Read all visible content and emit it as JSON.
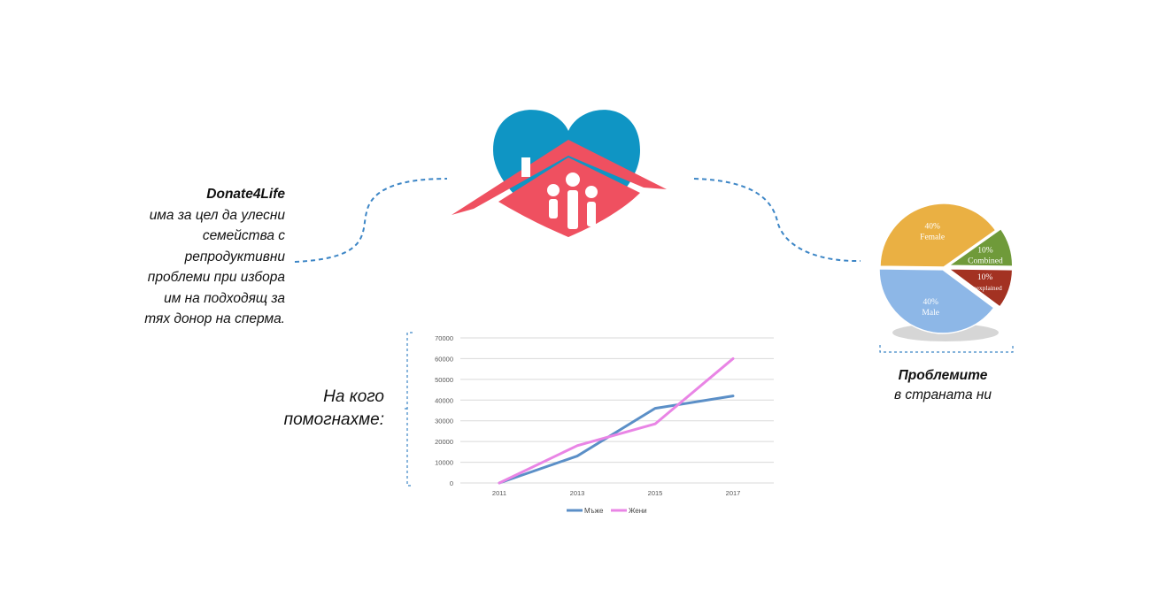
{
  "intro": {
    "brand": "Donate4Life",
    "lines": [
      "има за цел да улесни",
      "семейства с",
      "репродуктивни",
      "проблеми при избора",
      "им на подходящ за",
      "тях донор на сперма."
    ]
  },
  "helped": {
    "lines": [
      "На кого",
      "помогнахме:"
    ]
  },
  "problems": {
    "title": "Проблемите",
    "subtitle": "в страната ни"
  },
  "colors": {
    "heart_blue": "#0f95c4",
    "house_red": "#ef5060",
    "connector": "#3d86c6",
    "men_line": "#5b8fc7",
    "women_line": "#e985e5",
    "pie_female": "#eab043",
    "pie_combined": "#6f9a3a",
    "pie_unexplained": "#a33222",
    "pie_male": "#8db7e7"
  },
  "chart_data": [
    {
      "type": "line",
      "title": "",
      "xlabel": "",
      "ylabel": "",
      "categories": [
        "2011",
        "2013",
        "2015",
        "2017"
      ],
      "y_ticks": [
        "0",
        "10000",
        "20000",
        "30000",
        "40000",
        "50000",
        "60000",
        "70000"
      ],
      "ylim": [
        0,
        70000
      ],
      "grid": true,
      "legend": "bottom",
      "series": [
        {
          "name": "Мъже",
          "values": [
            0,
            13000,
            36000,
            42000
          ],
          "color": "#5b8fc7"
        },
        {
          "name": "Жени",
          "values": [
            0,
            18000,
            28500,
            60000
          ],
          "color": "#e985e5"
        }
      ]
    },
    {
      "type": "pie",
      "title": "",
      "slices": [
        {
          "percent": "40%",
          "label": "Female",
          "value": 40,
          "color": "#eab043"
        },
        {
          "percent": "10%",
          "label": "Combined",
          "value": 10,
          "color": "#6f9a3a"
        },
        {
          "percent": "10%",
          "label": "Unexplained",
          "value": 10,
          "color": "#a33222"
        },
        {
          "percent": "40%",
          "label": "Male",
          "value": 40,
          "color": "#8db7e7"
        }
      ]
    }
  ]
}
